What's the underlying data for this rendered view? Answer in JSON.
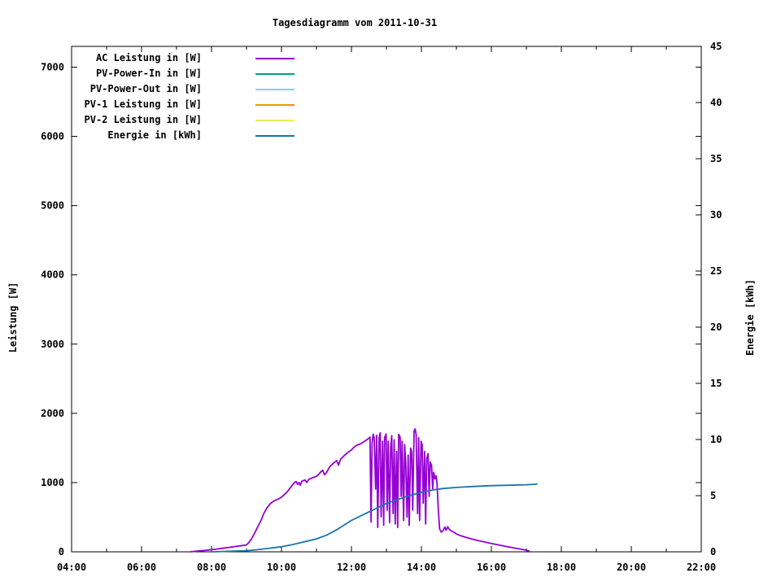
{
  "chart_data": {
    "type": "line",
    "title": "Tagesdiagramm vom 2011-10-31",
    "xlabel": "",
    "ylabel": "Leistung [W]",
    "y2label": "Energie [kWh]",
    "grid": false,
    "legend_position": "top-left",
    "x_axis": {
      "range_hours": [
        4,
        22
      ],
      "major_tick_hours": [
        4,
        6,
        8,
        10,
        12,
        14,
        16,
        18,
        20,
        22
      ],
      "major_tick_labels": [
        "04:00",
        "06:00",
        "08:00",
        "10:00",
        "12:00",
        "14:00",
        "16:00",
        "18:00",
        "20:00",
        "22:00"
      ],
      "minor_tick_hours": [
        5,
        7,
        9,
        11,
        13,
        15,
        17,
        19,
        21
      ]
    },
    "y_axis": {
      "range": [
        0,
        7300
      ],
      "tick_values": [
        0,
        1000,
        2000,
        3000,
        4000,
        5000,
        6000,
        7000
      ]
    },
    "y2_axis": {
      "range": [
        0,
        45
      ],
      "tick_values": [
        0,
        5,
        10,
        15,
        20,
        25,
        30,
        35,
        40,
        45
      ]
    },
    "series": [
      {
        "name": "AC Leistung in [W]",
        "color": "#9400d3",
        "axis": "y",
        "points": [
          [
            7.4,
            0
          ],
          [
            7.55,
            8
          ],
          [
            7.7,
            15
          ],
          [
            7.85,
            22
          ],
          [
            8.0,
            30
          ],
          [
            8.15,
            40
          ],
          [
            8.3,
            50
          ],
          [
            8.45,
            60
          ],
          [
            8.6,
            70
          ],
          [
            8.75,
            82
          ],
          [
            8.9,
            92
          ],
          [
            9.0,
            100
          ],
          [
            9.08,
            140
          ],
          [
            9.17,
            210
          ],
          [
            9.25,
            290
          ],
          [
            9.33,
            370
          ],
          [
            9.42,
            460
          ],
          [
            9.5,
            560
          ],
          [
            9.58,
            630
          ],
          [
            9.67,
            690
          ],
          [
            9.75,
            725
          ],
          [
            9.83,
            745
          ],
          [
            9.92,
            765
          ],
          [
            10.0,
            790
          ],
          [
            10.08,
            825
          ],
          [
            10.17,
            870
          ],
          [
            10.25,
            925
          ],
          [
            10.33,
            975
          ],
          [
            10.38,
            1005
          ],
          [
            10.42,
            1015
          ],
          [
            10.46,
            975
          ],
          [
            10.5,
            1000
          ],
          [
            10.54,
            962
          ],
          [
            10.58,
            1018
          ],
          [
            10.67,
            1038
          ],
          [
            10.72,
            1002
          ],
          [
            10.78,
            1046
          ],
          [
            10.88,
            1068
          ],
          [
            11.0,
            1090
          ],
          [
            11.08,
            1128
          ],
          [
            11.13,
            1158
          ],
          [
            11.18,
            1178
          ],
          [
            11.23,
            1112
          ],
          [
            11.29,
            1148
          ],
          [
            11.38,
            1228
          ],
          [
            11.48,
            1278
          ],
          [
            11.58,
            1318
          ],
          [
            11.63,
            1252
          ],
          [
            11.69,
            1338
          ],
          [
            11.79,
            1388
          ],
          [
            11.9,
            1438
          ],
          [
            12.0,
            1470
          ],
          [
            12.08,
            1515
          ],
          [
            12.17,
            1545
          ],
          [
            12.25,
            1558
          ],
          [
            12.33,
            1582
          ],
          [
            12.42,
            1612
          ],
          [
            12.5,
            1642
          ],
          [
            12.53,
            1655
          ],
          [
            12.56,
            430
          ],
          [
            12.59,
            1575
          ],
          [
            12.62,
            1700
          ],
          [
            12.65,
            1648
          ],
          [
            12.69,
            905
          ],
          [
            12.72,
            1682
          ],
          [
            12.75,
            352
          ],
          [
            12.79,
            1648
          ],
          [
            12.82,
            1718
          ],
          [
            12.85,
            505
          ],
          [
            12.89,
            1598
          ],
          [
            12.92,
            382
          ],
          [
            12.95,
            1652
          ],
          [
            12.99,
            1702
          ],
          [
            13.02,
            602
          ],
          [
            13.05,
            1598
          ],
          [
            13.09,
            422
          ],
          [
            13.12,
            1498
          ],
          [
            13.15,
            1678
          ],
          [
            13.19,
            552
          ],
          [
            13.22,
            1618
          ],
          [
            13.25,
            402
          ],
          [
            13.29,
            1448
          ],
          [
            13.32,
            352
          ],
          [
            13.35,
            1698
          ],
          [
            13.39,
            1658
          ],
          [
            13.42,
            802
          ],
          [
            13.45,
            1598
          ],
          [
            13.49,
            452
          ],
          [
            13.52,
            1548
          ],
          [
            13.55,
            1298
          ],
          [
            13.59,
            502
          ],
          [
            13.62,
            1398
          ],
          [
            13.65,
            382
          ],
          [
            13.69,
            1498
          ],
          [
            13.72,
            1448
          ],
          [
            13.75,
            602
          ],
          [
            13.79,
            1748
          ],
          [
            13.82,
            1775
          ],
          [
            13.85,
            1698
          ],
          [
            13.89,
            552
          ],
          [
            13.92,
            1648
          ],
          [
            13.95,
            452
          ],
          [
            13.99,
            1598
          ],
          [
            14.02,
            1548
          ],
          [
            14.05,
            702
          ],
          [
            14.09,
            1448
          ],
          [
            14.12,
            402
          ],
          [
            14.15,
            1348
          ],
          [
            14.19,
            1418
          ],
          [
            14.22,
            802
          ],
          [
            14.25,
            1298
          ],
          [
            14.29,
            1248
          ],
          [
            14.32,
            902
          ],
          [
            14.35,
            1148
          ],
          [
            14.39,
            1052
          ],
          [
            14.42,
            1098
          ],
          [
            14.45,
            975
          ],
          [
            14.48,
            640
          ],
          [
            14.52,
            330
          ],
          [
            14.57,
            285
          ],
          [
            14.62,
            305
          ],
          [
            14.67,
            358
          ],
          [
            14.71,
            312
          ],
          [
            14.75,
            362
          ],
          [
            14.8,
            322
          ],
          [
            14.86,
            300
          ],
          [
            14.93,
            282
          ],
          [
            15.0,
            258
          ],
          [
            15.1,
            238
          ],
          [
            15.25,
            212
          ],
          [
            15.4,
            190
          ],
          [
            15.6,
            165
          ],
          [
            15.8,
            142
          ],
          [
            16.0,
            120
          ],
          [
            16.2,
            100
          ],
          [
            16.4,
            80
          ],
          [
            16.6,
            60
          ],
          [
            16.8,
            42
          ],
          [
            17.0,
            24
          ],
          [
            17.08,
            10
          ]
        ]
      },
      {
        "name": "PV-Power-In in [W]",
        "color": "#00a184",
        "axis": "y",
        "points": []
      },
      {
        "name": "PV-Power-Out in [W]",
        "color": "#87ceeb",
        "axis": "y",
        "points": []
      },
      {
        "name": "PV-1 Leistung in [W]",
        "color": "#e59b00",
        "axis": "y",
        "points": []
      },
      {
        "name": "PV-2 Leistung in [W]",
        "color": "#ece85e",
        "axis": "y",
        "points": []
      },
      {
        "name": "Energie in [kWh]",
        "color": "#1a74ad",
        "axis": "y2",
        "points": [
          [
            8.0,
            0
          ],
          [
            8.3,
            0.03
          ],
          [
            8.6,
            0.06
          ],
          [
            9.0,
            0.1
          ],
          [
            9.3,
            0.18
          ],
          [
            9.6,
            0.3
          ],
          [
            10.0,
            0.45
          ],
          [
            10.3,
            0.63
          ],
          [
            10.6,
            0.85
          ],
          [
            11.0,
            1.15
          ],
          [
            11.3,
            1.5
          ],
          [
            11.6,
            2.0
          ],
          [
            12.0,
            2.8
          ],
          [
            12.3,
            3.25
          ],
          [
            12.6,
            3.7
          ],
          [
            13.0,
            4.3
          ],
          [
            13.3,
            4.62
          ],
          [
            13.6,
            4.95
          ],
          [
            14.0,
            5.3
          ],
          [
            14.3,
            5.5
          ],
          [
            14.6,
            5.63
          ],
          [
            15.0,
            5.73
          ],
          [
            15.5,
            5.82
          ],
          [
            16.0,
            5.89
          ],
          [
            16.5,
            5.93
          ],
          [
            17.0,
            5.97
          ],
          [
            17.3,
            6.02
          ]
        ]
      }
    ]
  }
}
